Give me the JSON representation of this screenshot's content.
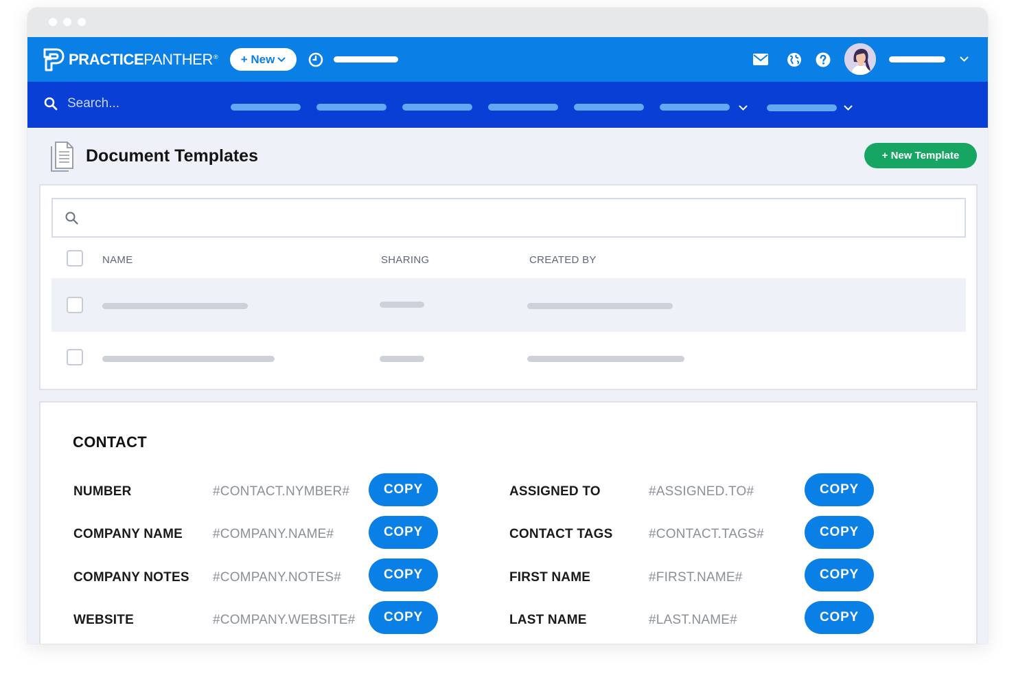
{
  "brand": {
    "name_bold": "PRACTICE",
    "name_light": "PANTHER",
    "registered": "®"
  },
  "topbar": {
    "new_label": "+ New"
  },
  "navbar": {
    "search_placeholder": "Search..."
  },
  "page": {
    "title": "Document Templates",
    "new_template_label": "+ New Template"
  },
  "table": {
    "search_placeholder": "",
    "columns": [
      "NAME",
      "SHARING",
      "CREATED BY"
    ]
  },
  "contact": {
    "section_title": "CONTACT",
    "copy_label": "COPY",
    "left_fields": [
      {
        "label": "NUMBER",
        "code": "#CONTACT.NYMBER#"
      },
      {
        "label": "COMPANY NAME",
        "code": "#COMPANY.NAME#"
      },
      {
        "label": "COMPANY NOTES",
        "code": "#COMPANY.NOTES#"
      },
      {
        "label": "WEBSITE",
        "code": "#COMPANY.WEBSITE#"
      }
    ],
    "right_fields": [
      {
        "label": "ASSIGNED TO",
        "code": "#ASSIGNED.TO#"
      },
      {
        "label": "CONTACT TAGS",
        "code": "#CONTACT.TAGS#"
      },
      {
        "label": "FIRST NAME",
        "code": "#FIRST.NAME#"
      },
      {
        "label": "LAST NAME",
        "code": "#LAST.NAME#"
      }
    ]
  },
  "icons": {
    "logo": "panther-p-logo-icon",
    "clock": "clock-icon",
    "mail": "mail-icon",
    "globe": "globe-icon",
    "help": "help-icon",
    "chevron": "chevron-down-icon",
    "search": "search-icon",
    "document": "document-icon"
  },
  "colors": {
    "topbar": "#0a7fe6",
    "navbar": "#0a3fd6",
    "new_template": "#17a564",
    "copy_button": "#0a7fe6"
  }
}
